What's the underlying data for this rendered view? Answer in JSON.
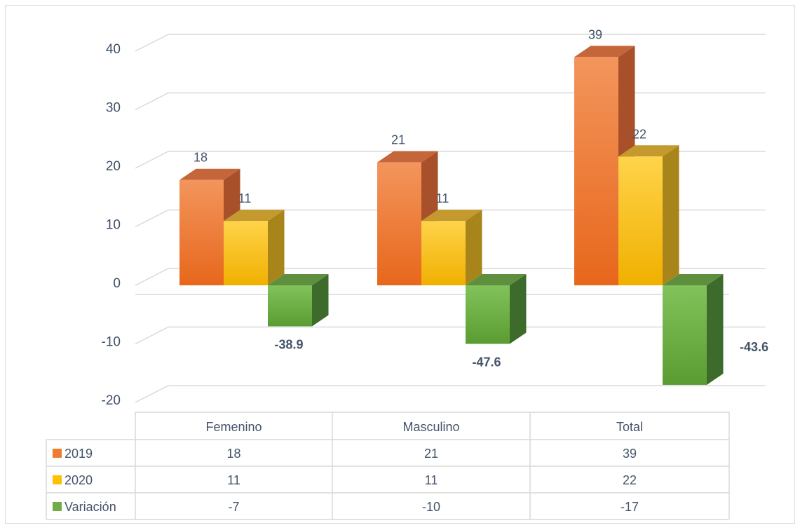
{
  "chart_data": {
    "type": "bar",
    "categories": [
      "Femenino",
      "Masculino",
      "Total"
    ],
    "series": [
      {
        "name": "2019",
        "values": [
          18,
          21,
          39
        ],
        "data_labels": [
          "18",
          "21",
          "39"
        ],
        "table_values": [
          "18",
          "21",
          "39"
        ],
        "color": "#ed7d31"
      },
      {
        "name": "2020",
        "values": [
          11,
          11,
          22
        ],
        "data_labels": [
          "11",
          "11",
          "22"
        ],
        "table_values": [
          "11",
          "11",
          "22"
        ],
        "color": "#ffc000"
      },
      {
        "name": "Variación",
        "values": [
          -7,
          -10,
          -17
        ],
        "data_labels": [
          "-38.9",
          "-47.6",
          "-43.6"
        ],
        "table_values": [
          "-7",
          "-10",
          "-17"
        ],
        "color": "#70ad47"
      }
    ],
    "y_ticks": [
      "40",
      "30",
      "20",
      "10",
      "0",
      "-10",
      "-20"
    ],
    "ylim": [
      -20,
      40
    ],
    "grid": true,
    "legend": "data-table",
    "style": "3d-column"
  }
}
